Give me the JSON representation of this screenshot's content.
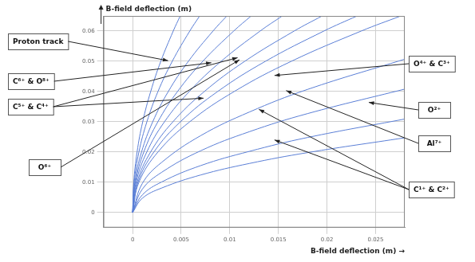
{
  "chart_data": {
    "type": "line",
    "x_label": "B-field deflection (m) →",
    "y_label": "B-field deflection (m)",
    "xlim": [
      -0.003,
      0.028
    ],
    "xticks": [
      0,
      0.005,
      0.01,
      0.015,
      0.02,
      0.025
    ],
    "ylim": [
      -0.005,
      0.065
    ],
    "yticks": [
      0,
      0.01,
      0.02,
      0.03,
      0.04,
      0.05,
      0.06
    ],
    "grid": true,
    "color": "#5b7fd6",
    "series": [
      {
        "x": [
          0,
          0.00012,
          0.00046,
          0.00104,
          0.00186,
          0.0029,
          0.00418,
          0.0049
        ],
        "values": [
          0,
          0.01,
          0.02,
          0.03,
          0.04,
          0.05,
          0.06,
          0.065
        ]
      },
      {
        "x": [
          0,
          0.00016,
          0.00065,
          0.00147,
          0.00261,
          0.00408,
          0.00588,
          0.0069
        ],
        "values": [
          0,
          0.01,
          0.02,
          0.03,
          0.04,
          0.05,
          0.06,
          0.065
        ]
      },
      {
        "x": [
          0,
          0.00023,
          0.00092,
          0.00207,
          0.00367,
          0.00574,
          0.00827,
          0.0097
        ],
        "values": [
          0,
          0.01,
          0.02,
          0.03,
          0.04,
          0.05,
          0.06,
          0.065
        ]
      },
      {
        "x": [
          0,
          0.00029,
          0.00115,
          0.0026,
          0.00462,
          0.00722,
          0.0104,
          0.0122
        ],
        "values": [
          0,
          0.01,
          0.02,
          0.03,
          0.04,
          0.05,
          0.06,
          0.065
        ]
      },
      {
        "x": [
          0,
          0.00036,
          0.00146,
          0.00328,
          0.00583,
          0.00911,
          0.01312,
          0.0154
        ],
        "values": [
          0,
          0.01,
          0.02,
          0.03,
          0.04,
          0.05,
          0.06,
          0.065
        ]
      },
      {
        "x": [
          0,
          0.00046,
          0.00185,
          0.00415,
          0.00738,
          0.01154,
          0.01662,
          0.0195
        ],
        "values": [
          0,
          0.01,
          0.02,
          0.03,
          0.04,
          0.05,
          0.06,
          0.065
        ]
      },
      {
        "x": [
          0,
          0.00055,
          0.00219,
          0.00492,
          0.00875,
          0.01367,
          0.01968,
          0.0231
        ],
        "values": [
          0,
          0.01,
          0.02,
          0.03,
          0.04,
          0.05,
          0.06,
          0.065
        ]
      },
      {
        "x": [
          0,
          0.00065,
          0.00261,
          0.00588,
          0.01045,
          0.01633,
          0.02352,
          0.0276
        ],
        "values": [
          0,
          0.01,
          0.02,
          0.03,
          0.04,
          0.05,
          0.06,
          0.065
        ]
      },
      {
        "x": [
          0,
          0.001,
          0.003,
          0.007,
          0.012,
          0.018,
          0.028
        ],
        "values": [
          0,
          0.0096,
          0.0166,
          0.0254,
          0.0332,
          0.0407,
          0.0507
        ]
      },
      {
        "x": [
          0,
          0.001,
          0.003,
          0.007,
          0.012,
          0.018,
          0.028
        ],
        "values": [
          0,
          0.0077,
          0.0133,
          0.0204,
          0.0267,
          0.0327,
          0.0408
        ]
      },
      {
        "x": [
          0,
          0.001,
          0.003,
          0.007,
          0.012,
          0.018,
          0.028
        ],
        "values": [
          0,
          0.0058,
          0.0101,
          0.0155,
          0.0202,
          0.0248,
          0.0309
        ]
      },
      {
        "x": [
          0,
          0.001,
          0.003,
          0.007,
          0.012,
          0.018,
          0.028
        ],
        "values": [
          0,
          0.0047,
          0.0081,
          0.0124,
          0.0162,
          0.0198,
          0.0247
        ]
      }
    ],
    "annotations": [
      {
        "text": "Proton track",
        "targets": [
          [
            0.00365,
            0.0502
          ]
        ]
      },
      {
        "text": "C⁶⁺ & O⁸⁺",
        "targets": [
          [
            0.0081,
            0.0495
          ]
        ]
      },
      {
        "text": "C⁵⁺ & C⁴⁺",
        "targets": [
          [
            0.0108,
            0.0512
          ],
          [
            0.0073,
            0.0378
          ]
        ]
      },
      {
        "text": "O⁶⁺",
        "targets": [
          [
            0.011,
            0.0505
          ]
        ]
      },
      {
        "text": "O⁴⁺ & C³⁺",
        "targets": [
          [
            0.0146,
            0.0453
          ]
        ]
      },
      {
        "text": "O²⁺",
        "targets": [
          [
            0.0243,
            0.0364
          ]
        ]
      },
      {
        "text": "Al⁷⁺",
        "targets": [
          [
            0.0158,
            0.0403
          ]
        ]
      },
      {
        "text": "C¹⁺ & C²⁺",
        "targets": [
          [
            0.013,
            0.0341
          ],
          [
            0.0146,
            0.024
          ]
        ]
      }
    ]
  }
}
